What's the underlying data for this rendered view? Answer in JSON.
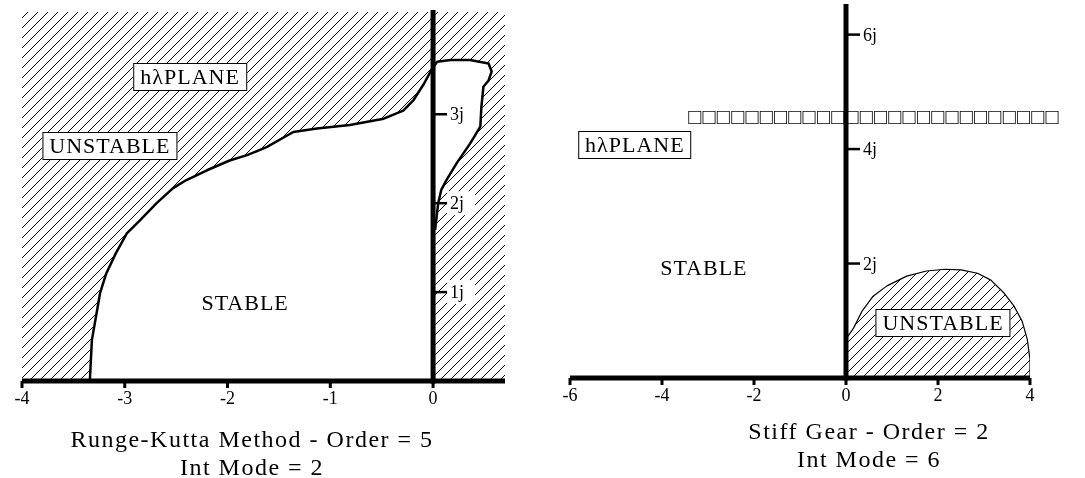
{
  "chart_data": [
    {
      "type": "line",
      "title": "Runge-Kutta Method - Order = 5",
      "subtitle": "Int Mode = 2",
      "annotations": [
        "hλPLANE",
        "STABLE"
      ],
      "x": [
        -3.34,
        -3.32,
        -3.24,
        -3.18,
        -3.09,
        -2.98,
        -2.85,
        -2.69,
        -2.53,
        -2.4,
        -2.2,
        -1.98,
        -1.81,
        -1.62,
        -1.36,
        -1.13,
        -0.81,
        -0.48,
        -0.29,
        -0.19,
        -0.09,
        -0.01,
        0.04,
        0.17,
        0.36,
        0.54,
        0.57,
        0.54,
        0.49,
        0.47,
        0.46,
        0.36,
        0.23,
        0.13,
        0.08,
        0.05,
        0.02
      ],
      "values": [
        0,
        0.46,
        0.99,
        1.21,
        1.43,
        1.66,
        1.81,
        2.0,
        2.17,
        2.26,
        2.37,
        2.48,
        2.54,
        2.63,
        2.8,
        2.84,
        2.88,
        2.95,
        3.04,
        3.16,
        3.34,
        3.51,
        3.59,
        3.61,
        3.61,
        3.57,
        3.48,
        3.38,
        3.31,
        3.08,
        2.86,
        2.67,
        2.45,
        2.26,
        2.15,
        2.0,
        1.7
      ],
      "color": "#000000",
      "bands": [
        {
          "axis": "y",
          "from": 0,
          "to": 4.15,
          "label": "UNSTABLE",
          "color": "#000000"
        }
      ],
      "xlim": [
        -4,
        0.7
      ],
      "xticks": [
        -4,
        -3,
        -2,
        -1,
        0
      ],
      "ylim": [
        0,
        4.15
      ],
      "yticks": [
        {
          "value": 1,
          "label": "1j"
        },
        {
          "value": 2,
          "label": "2j"
        },
        {
          "value": 3,
          "label": "3j"
        }
      ]
    },
    {
      "type": "area",
      "title": "Stiff Gear - Order = 2",
      "subtitle": "Int Mode = 6",
      "annotations": [
        "hλPLANE",
        "□□□□□□□□□□□□□□□□□□□□□□□□□□",
        "STABLE",
        "UNSTABLE"
      ],
      "x": [
        0,
        0.17,
        0.35,
        0.59,
        0.89,
        1.32,
        1.75,
        2.15,
        2.5,
        2.86,
        3.15,
        3.44,
        3.65,
        3.83,
        3.94,
        4.0,
        4.0
      ],
      "values": [
        0.68,
        0.88,
        1.17,
        1.43,
        1.61,
        1.78,
        1.87,
        1.9,
        1.89,
        1.83,
        1.71,
        1.48,
        1.26,
        0.99,
        0.68,
        0.33,
        0
      ],
      "color": "#000000",
      "xlim": [
        -6,
        4
      ],
      "xticks": [
        -6,
        -4,
        -2,
        0,
        2,
        4
      ],
      "ylim": [
        0,
        6.5
      ],
      "yticks": [
        {
          "value": 2,
          "label": "2j"
        },
        {
          "value": 4,
          "label": "4j"
        },
        {
          "value": 6,
          "label": "6j"
        }
      ]
    }
  ]
}
